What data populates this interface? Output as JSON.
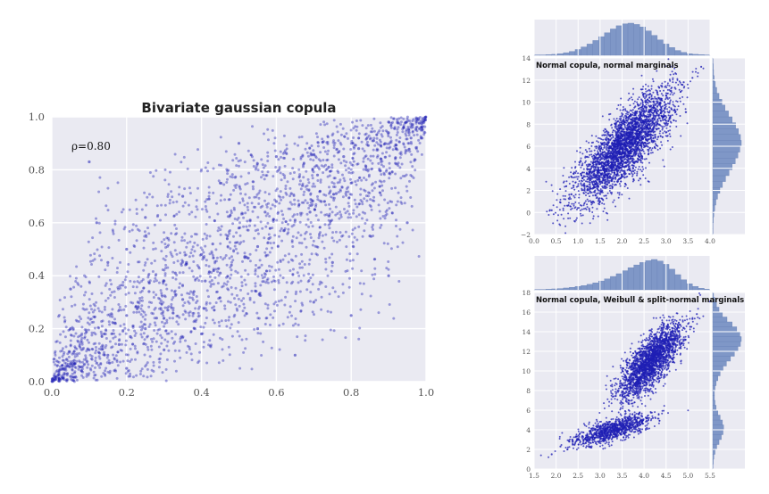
{
  "colors": {
    "panel_bg": "#eaeaf2",
    "grid": "#ffffff",
    "scatter_point": "#1f1fb4",
    "histogram_fill": "#7f97c7",
    "tick_text": "#555555"
  },
  "chart_data": [
    {
      "id": "main",
      "type": "scatter",
      "title": "Bivariate gaussian copula",
      "annotation": "ρ=0.80",
      "xlabel": "",
      "ylabel": "",
      "xlim": [
        0.0,
        1.0
      ],
      "ylim": [
        0.0,
        1.0
      ],
      "x_ticks": [
        "0.0",
        "0.2",
        "0.4",
        "0.6",
        "0.8",
        "1.0"
      ],
      "y_ticks": [
        "0.0",
        "0.2",
        "0.4",
        "0.6",
        "0.8",
        "1.0"
      ],
      "grid": true,
      "series": [
        {
          "points_sample": [
            [
              0.02,
              0.01
            ],
            [
              0.03,
              0.05
            ],
            [
              0.05,
              0.02
            ],
            [
              0.06,
              0.08
            ],
            [
              0.08,
              0.04
            ],
            [
              0.1,
              0.12
            ],
            [
              0.12,
              0.07
            ],
            [
              0.14,
              0.18
            ],
            [
              0.15,
              0.1
            ],
            [
              0.17,
              0.22
            ],
            [
              0.18,
              0.14
            ],
            [
              0.2,
              0.25
            ],
            [
              0.21,
              0.17
            ],
            [
              0.23,
              0.3
            ],
            [
              0.25,
              0.2
            ],
            [
              0.26,
              0.34
            ],
            [
              0.28,
              0.24
            ],
            [
              0.3,
              0.38
            ],
            [
              0.31,
              0.27
            ],
            [
              0.33,
              0.41
            ],
            [
              0.35,
              0.31
            ],
            [
              0.36,
              0.45
            ],
            [
              0.38,
              0.34
            ],
            [
              0.4,
              0.48
            ],
            [
              0.41,
              0.38
            ],
            [
              0.43,
              0.52
            ],
            [
              0.45,
              0.41
            ],
            [
              0.47,
              0.55
            ],
            [
              0.48,
              0.44
            ],
            [
              0.5,
              0.58
            ],
            [
              0.52,
              0.47
            ],
            [
              0.53,
              0.61
            ],
            [
              0.55,
              0.51
            ],
            [
              0.57,
              0.64
            ],
            [
              0.58,
              0.54
            ],
            [
              0.6,
              0.68
            ],
            [
              0.62,
              0.57
            ],
            [
              0.64,
              0.71
            ],
            [
              0.65,
              0.61
            ],
            [
              0.67,
              0.74
            ],
            [
              0.69,
              0.64
            ],
            [
              0.71,
              0.78
            ],
            [
              0.72,
              0.68
            ],
            [
              0.74,
              0.81
            ],
            [
              0.76,
              0.71
            ],
            [
              0.78,
              0.85
            ],
            [
              0.8,
              0.75
            ],
            [
              0.82,
              0.88
            ],
            [
              0.84,
              0.8
            ],
            [
              0.86,
              0.91
            ],
            [
              0.88,
              0.84
            ],
            [
              0.9,
              0.94
            ],
            [
              0.92,
              0.88
            ],
            [
              0.94,
              0.96
            ],
            [
              0.96,
              0.92
            ],
            [
              0.98,
              0.99
            ],
            [
              0.99,
              0.95
            ],
            [
              0.1,
              0.83
            ],
            [
              0.12,
              0.6
            ],
            [
              0.2,
              0.5
            ],
            [
              0.25,
              0.62
            ],
            [
              0.3,
              0.12
            ],
            [
              0.4,
              0.18
            ],
            [
              0.45,
              0.75
            ],
            [
              0.55,
              0.2
            ],
            [
              0.6,
              0.85
            ],
            [
              0.7,
              0.3
            ],
            [
              0.75,
              0.45
            ],
            [
              0.8,
              0.25
            ],
            [
              0.85,
              0.55
            ],
            [
              0.9,
              0.4
            ],
            [
              0.35,
              0.7
            ],
            [
              0.05,
              0.35
            ],
            [
              0.15,
              0.45
            ],
            [
              0.65,
              0.1
            ],
            [
              0.5,
              0.9
            ],
            [
              0.95,
              0.6
            ],
            [
              0.2,
              0.05
            ],
            [
              0.05,
              0.2
            ],
            [
              0.9,
              0.98
            ]
          ]
        }
      ]
    },
    {
      "id": "top_right",
      "type": "scatter",
      "title": "Normal copula, normal marginals",
      "xlabel": "",
      "ylabel": "",
      "xlim": [
        0.0,
        4.0
      ],
      "ylim": [
        -2,
        14
      ],
      "x_ticks": [
        "0.0",
        "0.5",
        "1.0",
        "1.5",
        "2.0",
        "2.5",
        "3.0",
        "3.5",
        "4.0"
      ],
      "y_ticks": [
        "−2",
        "0",
        "2",
        "4",
        "6",
        "8",
        "10",
        "12",
        "14"
      ],
      "grid": true,
      "marginals": {
        "x_histogram_counts": [
          1,
          1,
          2,
          3,
          5,
          8,
          12,
          18,
          26,
          35,
          46,
          58,
          70,
          82,
          92,
          98,
          100,
          96,
          88,
          76,
          62,
          48,
          35,
          24,
          15,
          9,
          5,
          3,
          2,
          1
        ],
        "y_histogram_counts": [
          1,
          1,
          2,
          4,
          7,
          11,
          17,
          25,
          34,
          45,
          57,
          68,
          79,
          88,
          95,
          100,
          97,
          90,
          80,
          68,
          55,
          43,
          32,
          22,
          14,
          9,
          5,
          3,
          2,
          1
        ]
      },
      "series": [
        {
          "points_sample": [
            [
              0.4,
              0.2
            ],
            [
              0.6,
              0.9
            ],
            [
              0.8,
              1.6
            ],
            [
              1.0,
              2.4
            ],
            [
              1.1,
              3.1
            ],
            [
              1.2,
              3.5
            ],
            [
              1.3,
              4.0
            ],
            [
              1.4,
              4.6
            ],
            [
              1.5,
              5.0
            ],
            [
              1.6,
              5.5
            ],
            [
              1.7,
              5.8
            ],
            [
              1.8,
              6.2
            ],
            [
              1.9,
              6.6
            ],
            [
              2.0,
              7.0
            ],
            [
              2.1,
              7.3
            ],
            [
              2.2,
              7.7
            ],
            [
              2.3,
              8.0
            ],
            [
              2.4,
              8.4
            ],
            [
              2.5,
              8.8
            ],
            [
              2.6,
              9.1
            ],
            [
              2.7,
              9.5
            ],
            [
              2.8,
              9.9
            ],
            [
              2.9,
              10.3
            ],
            [
              3.0,
              10.6
            ],
            [
              3.1,
              11.0
            ],
            [
              3.2,
              11.3
            ],
            [
              3.4,
              11.8
            ],
            [
              3.6,
              12.2
            ],
            [
              3.8,
              13.2
            ],
            [
              1.5,
              3.2
            ],
            [
              1.8,
              4.2
            ],
            [
              2.2,
              5.5
            ],
            [
              2.4,
              6.1
            ],
            [
              2.6,
              7.0
            ],
            [
              1.2,
              5.5
            ],
            [
              1.6,
              7.0
            ],
            [
              2.0,
              8.8
            ],
            [
              2.3,
              9.6
            ],
            [
              0.9,
              3.5
            ],
            [
              2.8,
              8.0
            ]
          ]
        }
      ]
    },
    {
      "id": "bottom_right",
      "type": "scatter",
      "title": "Normal copula, Weibull & split-normal marginals",
      "xlabel": "",
      "ylabel": "",
      "xlim": [
        1.5,
        5.5
      ],
      "ylim": [
        0,
        18
      ],
      "x_ticks": [
        "1.5",
        "2.0",
        "2.5",
        "3.0",
        "3.5",
        "4.0",
        "4.5",
        "5.0",
        "5.5"
      ],
      "y_ticks": [
        "0",
        "2",
        "4",
        "6",
        "8",
        "10",
        "12",
        "14",
        "16",
        "18"
      ],
      "grid": true,
      "marginals": {
        "x_histogram_counts": [
          1,
          1,
          2,
          3,
          4,
          6,
          8,
          11,
          14,
          18,
          23,
          29,
          36,
          44,
          53,
          63,
          73,
          82,
          90,
          96,
          100,
          95,
          84,
          68,
          50,
          33,
          20,
          11,
          5,
          2
        ],
        "y_histogram_counts": [
          1,
          2,
          4,
          8,
          14,
          22,
          30,
          36,
          38,
          34,
          26,
          18,
          12,
          8,
          6,
          6,
          8,
          12,
          18,
          26,
          36,
          48,
          62,
          76,
          88,
          97,
          100,
          95,
          84,
          68,
          50,
          34,
          22,
          13,
          7,
          3
        ]
      },
      "series": [
        {
          "points_sample": [
            [
              1.9,
              1.5
            ],
            [
              2.1,
              2.3
            ],
            [
              2.3,
              2.8
            ],
            [
              2.5,
              3.0
            ],
            [
              2.7,
              3.4
            ],
            [
              2.9,
              3.6
            ],
            [
              3.1,
              3.9
            ],
            [
              3.3,
              4.0
            ],
            [
              3.5,
              4.2
            ],
            [
              3.7,
              4.5
            ],
            [
              3.9,
              4.7
            ],
            [
              4.1,
              5.0
            ],
            [
              4.2,
              5.2
            ],
            [
              3.4,
              8.0
            ],
            [
              3.5,
              8.6
            ],
            [
              3.6,
              9.1
            ],
            [
              3.7,
              9.5
            ],
            [
              3.8,
              10.0
            ],
            [
              3.9,
              10.4
            ],
            [
              4.0,
              10.8
            ],
            [
              4.1,
              11.2
            ],
            [
              4.2,
              11.6
            ],
            [
              4.3,
              12.0
            ],
            [
              4.4,
              12.4
            ],
            [
              4.5,
              12.8
            ],
            [
              4.6,
              13.2
            ],
            [
              4.7,
              13.6
            ],
            [
              4.8,
              14.0
            ],
            [
              4.9,
              14.4
            ],
            [
              5.0,
              14.8
            ],
            [
              5.1,
              15.3
            ],
            [
              5.2,
              15.8
            ],
            [
              3.6,
              7.2
            ],
            [
              4.0,
              9.5
            ],
            [
              4.3,
              10.5
            ],
            [
              4.5,
              11.5
            ],
            [
              3.8,
              12.0
            ],
            [
              4.4,
              13.8
            ]
          ]
        }
      ]
    }
  ]
}
